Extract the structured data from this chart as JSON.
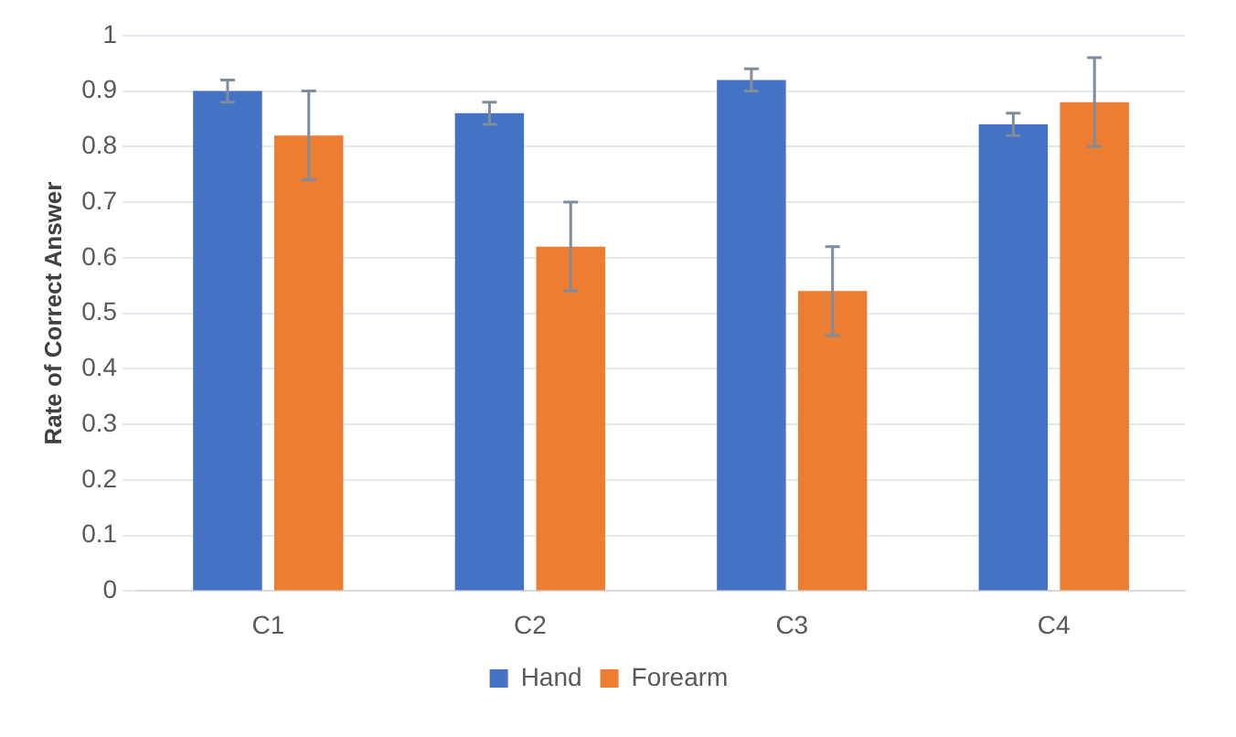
{
  "chart_data": {
    "type": "bar",
    "ylabel": "Rate of Correct Answer",
    "categories": [
      "C1",
      "C2",
      "C3",
      "C4"
    ],
    "series": [
      {
        "name": "Hand",
        "color": "#4472c4",
        "values": [
          0.9,
          0.86,
          0.92,
          0.84
        ],
        "errors": [
          0.02,
          0.02,
          0.02,
          0.02
        ]
      },
      {
        "name": "Forearm",
        "color": "#ed7d31",
        "values": [
          0.82,
          0.62,
          0.54,
          0.88
        ],
        "errors": [
          0.08,
          0.08,
          0.08,
          0.08
        ]
      }
    ],
    "ylim": [
      0,
      1
    ],
    "yticks": [
      0,
      0.1,
      0.2,
      0.3,
      0.4,
      0.5,
      0.6,
      0.7,
      0.8,
      0.9,
      1
    ],
    "grid": "y",
    "legend": "bottom"
  }
}
